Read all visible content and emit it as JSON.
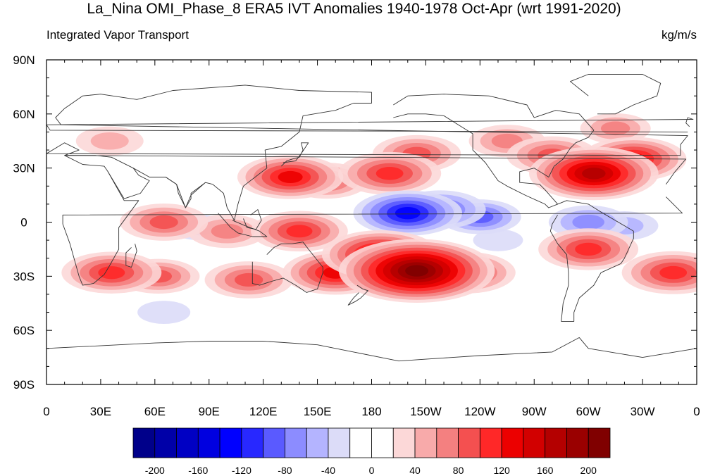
{
  "figure": {
    "title": "La_Nina OMI_Phase_8 ERA5 IVT Anomalies 1940-1978 Oct-Apr (wrt 1991-2020)",
    "left_subtitle": "Integrated Vapor Transport",
    "right_subtitle": "kg/m/s"
  },
  "map": {
    "projection": "cylindrical-equidistant",
    "lon_range": [
      0,
      360
    ],
    "lat_range": [
      -90,
      90
    ],
    "lat_ticks": [
      {
        "value": 90,
        "label": "90N"
      },
      {
        "value": 60,
        "label": "60N"
      },
      {
        "value": 30,
        "label": "30N"
      },
      {
        "value": 0,
        "label": "0"
      },
      {
        "value": -30,
        "label": "30S"
      },
      {
        "value": -60,
        "label": "60S"
      },
      {
        "value": -90,
        "label": "90S"
      }
    ],
    "lon_ticks": [
      {
        "value": 0,
        "label": "0"
      },
      {
        "value": 30,
        "label": "30E"
      },
      {
        "value": 60,
        "label": "60E"
      },
      {
        "value": 90,
        "label": "90E"
      },
      {
        "value": 120,
        "label": "120E"
      },
      {
        "value": 150,
        "label": "150E"
      },
      {
        "value": 180,
        "label": "180"
      },
      {
        "value": 210,
        "label": "150W"
      },
      {
        "value": 240,
        "label": "120W"
      },
      {
        "value": 270,
        "label": "90W"
      },
      {
        "value": 300,
        "label": "60W"
      },
      {
        "value": 330,
        "label": "30W"
      },
      {
        "value": 360,
        "label": "0"
      }
    ]
  },
  "colorbar": {
    "levels": [
      -200,
      -180,
      -160,
      -140,
      -120,
      -100,
      -80,
      -60,
      -40,
      -20,
      0,
      20,
      40,
      60,
      80,
      100,
      120,
      140,
      160,
      180,
      200
    ],
    "colors": [
      "#00008a",
      "#0000a8",
      "#0000c4",
      "#0000e0",
      "#0000ff",
      "#2828ff",
      "#5a5aff",
      "#8c8cff",
      "#b4b4ff",
      "#dcdcf8",
      "#ffffff",
      "#ffffff",
      "#fcd8d8",
      "#f8aaaa",
      "#f48080",
      "#f45050",
      "#ff2828",
      "#ec0000",
      "#d20000",
      "#b40000",
      "#9a0000",
      "#800000"
    ],
    "label_values": [
      -200,
      -160,
      -120,
      -80,
      -40,
      0,
      40,
      80,
      120,
      160,
      200
    ],
    "labels": [
      "-200",
      "-160",
      "-120",
      "-80",
      "-40",
      "0",
      "40",
      "80",
      "120",
      "160",
      "200"
    ]
  },
  "anomaly_field": {
    "units": "kg/m/s",
    "features": [
      {
        "lon": 160,
        "lat": -28,
        "value": 120
      },
      {
        "lon": 205,
        "lat": -27,
        "value": 205
      },
      {
        "lon": 185,
        "lat": -18,
        "value": 140
      },
      {
        "lon": 232,
        "lat": -28,
        "value": 110
      },
      {
        "lon": 140,
        "lat": -5,
        "value": 105
      },
      {
        "lon": 112,
        "lat": -32,
        "value": 90
      },
      {
        "lon": 36,
        "lat": -28,
        "value": 110
      },
      {
        "lon": 62,
        "lat": -30,
        "value": 80
      },
      {
        "lon": 65,
        "lat": 0,
        "value": 90
      },
      {
        "lon": 100,
        "lat": -5,
        "value": 75
      },
      {
        "lon": 190,
        "lat": 27,
        "value": 115
      },
      {
        "lon": 205,
        "lat": 38,
        "value": 90
      },
      {
        "lon": 135,
        "lat": 25,
        "value": 120
      },
      {
        "lon": 155,
        "lat": 23,
        "value": 85
      },
      {
        "lon": 255,
        "lat": 45,
        "value": 70
      },
      {
        "lon": 303,
        "lat": 27,
        "value": 160
      },
      {
        "lon": 325,
        "lat": 35,
        "value": 120
      },
      {
        "lon": 280,
        "lat": 37,
        "value": 95
      },
      {
        "lon": 315,
        "lat": 52,
        "value": 60
      },
      {
        "lon": 300,
        "lat": -15,
        "value": 110
      },
      {
        "lon": 347,
        "lat": -28,
        "value": 115
      },
      {
        "lon": 35,
        "lat": 45,
        "value": 55
      },
      {
        "lon": 200,
        "lat": 5,
        "value": -125
      },
      {
        "lon": 218,
        "lat": 7,
        "value": -95
      },
      {
        "lon": 240,
        "lat": 3,
        "value": -80
      },
      {
        "lon": 300,
        "lat": 0,
        "value": -75
      },
      {
        "lon": 320,
        "lat": -2,
        "value": -55
      },
      {
        "lon": 85,
        "lat": -3,
        "value": -40
      },
      {
        "lon": 65,
        "lat": -50,
        "value": -30
      },
      {
        "lon": 250,
        "lat": -10,
        "value": -25
      }
    ]
  }
}
